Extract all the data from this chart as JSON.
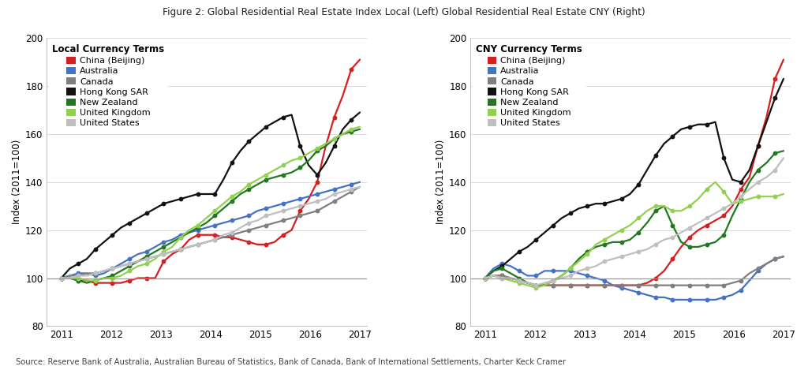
{
  "title": "Figure 2: Global Residential Real Estate Index Local (Left) Global Residential Real Estate CNY (Right)",
  "source": "Source: Reserve Bank of Australia, Australian Bureau of Statistics, Bank of Canada, Bank of International Settlements, Charter Keck Cramer",
  "left_legend_title": "Local Currency Terms",
  "right_legend_title": "CNY Currency Terms",
  "ylabel": "Index (2011=100)",
  "ylim": [
    80,
    200
  ],
  "yticks": [
    80,
    100,
    120,
    140,
    160,
    180,
    200
  ],
  "xlabel_years": [
    "2011",
    "2012",
    "2013",
    "2014",
    "2015",
    "2016",
    "2017"
  ],
  "colors": {
    "China (Beijing)": "#d42020",
    "Australia": "#4472c4",
    "Canada": "#7f7f7f",
    "Hong Kong SAR": "#111111",
    "New Zealand": "#217821",
    "United Kingdom": "#92d050",
    "United States": "#bfbfbf"
  },
  "left": {
    "China (Beijing)": [
      100,
      100,
      99,
      99,
      98,
      98,
      98,
      98,
      99,
      100,
      100,
      100,
      107,
      110,
      112,
      116,
      118,
      118,
      118,
      117,
      117,
      116,
      115,
      114,
      114,
      115,
      118,
      120,
      128,
      133,
      140,
      155,
      167,
      176,
      187,
      191
    ],
    "Australia": [
      100,
      101,
      102,
      102,
      101,
      102,
      104,
      106,
      108,
      110,
      111,
      113,
      115,
      116,
      118,
      119,
      120,
      121,
      122,
      123,
      124,
      125,
      126,
      128,
      129,
      130,
      131,
      132,
      133,
      134,
      135,
      136,
      137,
      138,
      139,
      140
    ],
    "Canada": [
      100,
      101,
      101,
      102,
      102,
      103,
      104,
      105,
      106,
      107,
      108,
      109,
      110,
      111,
      112,
      113,
      114,
      115,
      116,
      117,
      118,
      119,
      120,
      121,
      122,
      123,
      124,
      125,
      126,
      127,
      128,
      130,
      132,
      134,
      136,
      138
    ],
    "Hong Kong SAR": [
      100,
      104,
      106,
      108,
      112,
      115,
      118,
      121,
      123,
      125,
      127,
      129,
      131,
      132,
      133,
      134,
      135,
      135,
      135,
      141,
      148,
      153,
      157,
      160,
      163,
      165,
      167,
      168,
      155,
      147,
      143,
      148,
      155,
      162,
      166,
      169
    ],
    "New Zealand": [
      100,
      100,
      99,
      98,
      99,
      100,
      101,
      103,
      105,
      107,
      109,
      111,
      113,
      115,
      117,
      119,
      121,
      123,
      126,
      129,
      132,
      135,
      137,
      139,
      141,
      142,
      143,
      144,
      146,
      149,
      153,
      155,
      158,
      160,
      161,
      162
    ],
    "United Kingdom": [
      100,
      100,
      100,
      99,
      99,
      100,
      100,
      101,
      103,
      105,
      106,
      108,
      111,
      113,
      117,
      120,
      122,
      125,
      128,
      131,
      134,
      136,
      139,
      141,
      143,
      145,
      147,
      149,
      150,
      152,
      154,
      156,
      158,
      160,
      162,
      163
    ],
    "United States": [
      100,
      100,
      101,
      101,
      102,
      103,
      104,
      105,
      106,
      107,
      108,
      109,
      110,
      111,
      112,
      113,
      114,
      115,
      116,
      118,
      119,
      121,
      123,
      124,
      126,
      127,
      128,
      129,
      130,
      131,
      132,
      133,
      135,
      136,
      137,
      138
    ]
  },
  "right": {
    "China (Beijing)": [
      100,
      101,
      101,
      100,
      99,
      98,
      97,
      97,
      97,
      97,
      97,
      97,
      97,
      97,
      97,
      97,
      97,
      97,
      97,
      98,
      100,
      103,
      108,
      113,
      117,
      120,
      122,
      124,
      126,
      130,
      137,
      142,
      155,
      167,
      183,
      191
    ],
    "Australia": [
      100,
      104,
      106,
      105,
      103,
      101,
      101,
      103,
      103,
      103,
      103,
      102,
      101,
      100,
      99,
      97,
      96,
      95,
      94,
      93,
      92,
      92,
      91,
      91,
      91,
      91,
      91,
      91,
      92,
      93,
      95,
      99,
      103,
      106,
      108,
      109
    ],
    "Canada": [
      100,
      101,
      101,
      100,
      99,
      98,
      97,
      97,
      97,
      97,
      97,
      97,
      97,
      97,
      97,
      97,
      97,
      97,
      97,
      97,
      97,
      97,
      97,
      97,
      97,
      97,
      97,
      97,
      97,
      98,
      99,
      102,
      104,
      106,
      108,
      109
    ],
    "Hong Kong SAR": [
      100,
      103,
      105,
      108,
      111,
      113,
      116,
      119,
      122,
      125,
      127,
      129,
      130,
      131,
      131,
      132,
      133,
      135,
      139,
      145,
      151,
      156,
      159,
      162,
      163,
      164,
      164,
      165,
      150,
      141,
      140,
      145,
      155,
      165,
      175,
      183
    ],
    "New Zealand": [
      100,
      103,
      104,
      102,
      100,
      98,
      97,
      97,
      99,
      101,
      104,
      108,
      111,
      113,
      114,
      115,
      115,
      116,
      119,
      123,
      128,
      130,
      122,
      115,
      113,
      113,
      114,
      115,
      118,
      126,
      133,
      140,
      145,
      148,
      152,
      153
    ],
    "United Kingdom": [
      100,
      101,
      100,
      99,
      98,
      97,
      96,
      97,
      99,
      101,
      104,
      107,
      110,
      114,
      116,
      118,
      120,
      122,
      125,
      128,
      130,
      130,
      128,
      128,
      130,
      133,
      137,
      140,
      136,
      131,
      132,
      133,
      134,
      134,
      134,
      135
    ],
    "United States": [
      100,
      101,
      100,
      100,
      99,
      98,
      97,
      98,
      99,
      100,
      101,
      103,
      104,
      105,
      107,
      108,
      109,
      110,
      111,
      112,
      114,
      116,
      117,
      119,
      121,
      123,
      125,
      127,
      129,
      131,
      134,
      137,
      140,
      142,
      145,
      150
    ]
  },
  "background_color": "#ffffff",
  "grid_color": "#cccccc",
  "hline_color": "#999999"
}
